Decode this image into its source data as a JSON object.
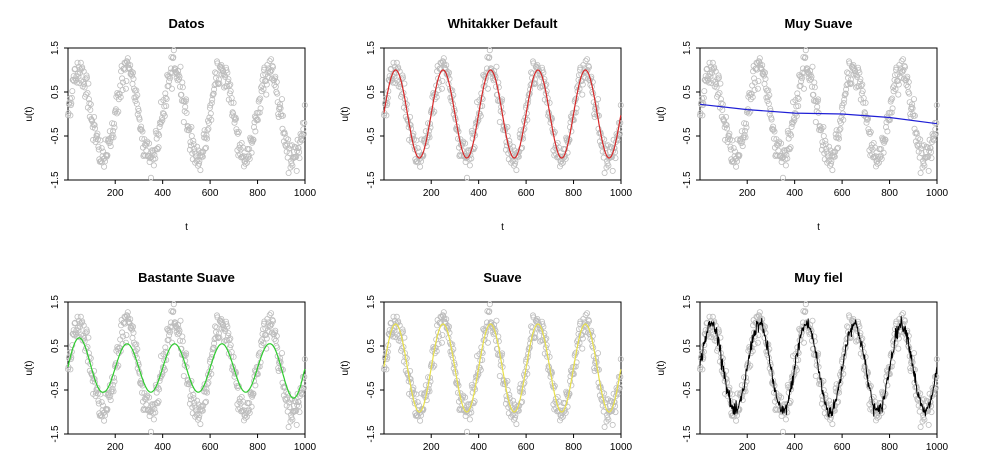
{
  "chart_data": [
    {
      "type": "scatter",
      "title": "Datos",
      "xlabel": "t",
      "ylabel": "u(t)",
      "xlim": [
        1,
        1000
      ],
      "ylim": [
        -1.5,
        1.5
      ],
      "xticks": [
        "200",
        "400",
        "600",
        "800",
        "1000"
      ],
      "yticks": [
        "-1.5",
        "-0.5",
        "0.5",
        "1.5"
      ],
      "points": {
        "name": "data",
        "color": "#bdbdbd",
        "n": 1000,
        "x_range": [
          1,
          1000
        ],
        "approx": "sin(2*pi*t/200) + noise"
      },
      "fit": null
    },
    {
      "type": "scatter",
      "title": "Whitakker Default",
      "xlabel": "t",
      "ylabel": "u(t)",
      "xlim": [
        1,
        1000
      ],
      "ylim": [
        -1.5,
        1.5
      ],
      "xticks": [
        "200",
        "400",
        "600",
        "800",
        "1000"
      ],
      "yticks": [
        "-1.5",
        "-0.5",
        "0.5",
        "1.5"
      ],
      "points": {
        "name": "data",
        "color": "#bdbdbd",
        "n": 1000,
        "x_range": [
          1,
          1000
        ],
        "approx": "sin(2*pi*t/200) + noise"
      },
      "fit": {
        "name": "smooth",
        "color": "#d62728",
        "amplitude": 1.0,
        "period": 200,
        "width": 1.2
      }
    },
    {
      "type": "scatter",
      "title": "Muy Suave",
      "xlabel": "t",
      "ylabel": "u(t)",
      "xlim": [
        1,
        1000
      ],
      "ylim": [
        -1.5,
        1.5
      ],
      "xticks": [
        "200",
        "400",
        "600",
        "800",
        "1000"
      ],
      "yticks": [
        "-1.5",
        "-0.5",
        "0.5",
        "1.5"
      ],
      "points": {
        "name": "data",
        "color": "#bdbdbd",
        "n": 1000,
        "x_range": [
          1,
          1000
        ],
        "approx": "sin(2*pi*t/200) + noise"
      },
      "fit": {
        "name": "smooth",
        "color": "#1f1fd6",
        "kind": "trend",
        "x": [
          1,
          200,
          400,
          600,
          800,
          1000
        ],
        "y": [
          0.22,
          0.1,
          0.02,
          0.0,
          -0.08,
          -0.22
        ],
        "width": 1.2
      }
    },
    {
      "type": "scatter",
      "title": "Bastante Suave",
      "xlabel": "t",
      "ylabel": "u(t)",
      "xlim": [
        1,
        1000
      ],
      "ylim": [
        -1.5,
        1.5
      ],
      "xticks": [
        "200",
        "400",
        "600",
        "800",
        "1000"
      ],
      "yticks": [
        "-1.5",
        "-0.5",
        "0.5",
        "1.5"
      ],
      "points": {
        "name": "data",
        "color": "#bdbdbd",
        "n": 1000,
        "x_range": [
          1,
          1000
        ],
        "approx": "sin(2*pi*t/200) + noise"
      },
      "fit": {
        "name": "smooth",
        "color": "#2ecc2e",
        "amplitude": 0.55,
        "period": 200,
        "edge_amplitude": 0.75,
        "width": 1.2
      }
    },
    {
      "type": "scatter",
      "title": "Suave",
      "xlabel": "t",
      "ylabel": "u(t)",
      "xlim": [
        1,
        1000
      ],
      "ylim": [
        -1.5,
        1.5
      ],
      "xticks": [
        "200",
        "400",
        "600",
        "800",
        "1000"
      ],
      "yticks": [
        "-1.5",
        "-0.5",
        "0.5",
        "1.5"
      ],
      "points": {
        "name": "data",
        "color": "#bdbdbd",
        "n": 1000,
        "x_range": [
          1,
          1000
        ],
        "approx": "sin(2*pi*t/200) + noise"
      },
      "fit": {
        "name": "smooth",
        "color": "#e8e04a",
        "amplitude": 1.0,
        "period": 200,
        "width": 1.2
      }
    },
    {
      "type": "scatter",
      "title": "Muy fiel",
      "xlabel": "t",
      "ylabel": "u(t)",
      "xlim": [
        1,
        1000
      ],
      "ylim": [
        -1.5,
        1.5
      ],
      "xticks": [
        "200",
        "400",
        "600",
        "800",
        "1000"
      ],
      "yticks": [
        "-1.5",
        "-0.5",
        "0.5",
        "1.5"
      ],
      "points": {
        "name": "data",
        "color": "#bdbdbd",
        "n": 1000,
        "x_range": [
          1,
          1000
        ],
        "approx": "sin(2*pi*t/200) + noise"
      },
      "fit": {
        "name": "smooth",
        "color": "#000000",
        "amplitude": 1.0,
        "period": 200,
        "kind": "noisy",
        "width": 1.0
      }
    }
  ]
}
